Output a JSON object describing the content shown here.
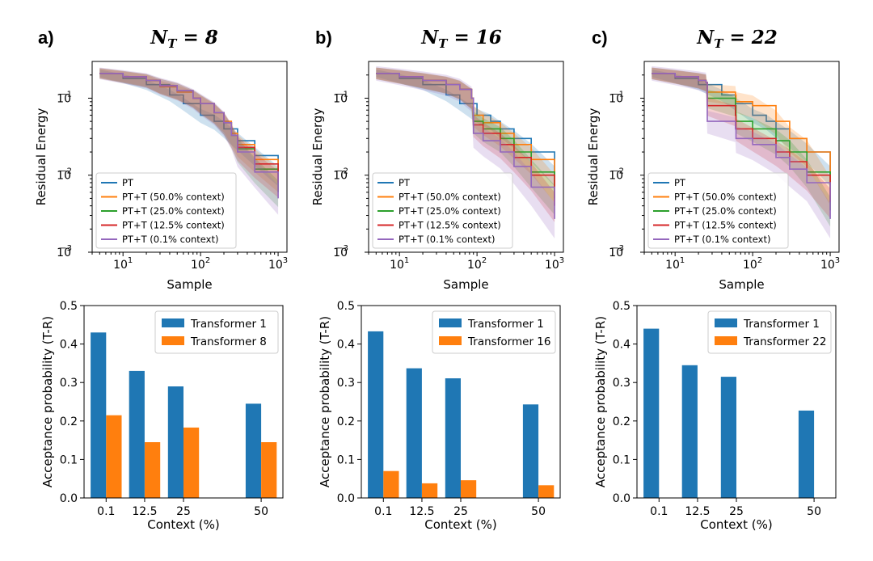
{
  "figure": {
    "x_label_top": "Sample",
    "y_label_top": "Residual Energy",
    "x_label_bottom": "Context (%)",
    "y_label_bottom": "Acceptance probability (T-R)",
    "log_x_ticks": [
      "10",
      "1",
      "10",
      "2",
      "10",
      "3"
    ],
    "log_y_ticks": [
      "10",
      "−1",
      "10",
      "−2",
      "10",
      "−3"
    ]
  },
  "chart_data": [
    {
      "type": "line",
      "panel_letter": "a)",
      "title_main": "N",
      "title_sub": "T",
      "title_rest": " = 8",
      "xscale": "log",
      "yscale": "log",
      "xlim": [
        4,
        1300
      ],
      "ylim": [
        0.001,
        0.3
      ],
      "xlabel": "Sample",
      "ylabel": "Residual Energy",
      "legend_loc": "lower-left",
      "series": [
        {
          "name": "PT",
          "color": "#1f77b4",
          "band": 0.2,
          "points": [
            [
              5,
              0.21
            ],
            [
              10,
              0.18
            ],
            [
              20,
              0.15
            ],
            [
              40,
              0.11
            ],
            [
              60,
              0.085
            ],
            [
              100,
              0.06
            ],
            [
              150,
              0.05
            ],
            [
              200,
              0.04
            ],
            [
              300,
              0.028
            ],
            [
              500,
              0.018
            ],
            [
              1000,
              0.01
            ]
          ]
        },
        {
          "name": "PT+T (50.0% context)",
          "color": "#ff7f0e",
          "band": 0.25,
          "points": [
            [
              5,
              0.21
            ],
            [
              10,
              0.19
            ],
            [
              20,
              0.17
            ],
            [
              30,
              0.14
            ],
            [
              50,
              0.12
            ],
            [
              80,
              0.1
            ],
            [
              100,
              0.085
            ],
            [
              150,
              0.065
            ],
            [
              200,
              0.05
            ],
            [
              250,
              0.035
            ],
            [
              300,
              0.025
            ],
            [
              500,
              0.016
            ],
            [
              1000,
              0.009
            ]
          ]
        },
        {
          "name": "PT+T (25.0% context)",
          "color": "#2ca02c",
          "band": 0.28,
          "points": [
            [
              5,
              0.21
            ],
            [
              10,
              0.19
            ],
            [
              20,
              0.17
            ],
            [
              30,
              0.145
            ],
            [
              50,
              0.125
            ],
            [
              80,
              0.1
            ],
            [
              100,
              0.085
            ],
            [
              150,
              0.065
            ],
            [
              200,
              0.048
            ],
            [
              250,
              0.033
            ],
            [
              300,
              0.022
            ],
            [
              500,
              0.012
            ],
            [
              1000,
              0.006
            ]
          ]
        },
        {
          "name": "PT+T (12.5% context)",
          "color": "#d62728",
          "band": 0.28,
          "points": [
            [
              5,
              0.21
            ],
            [
              10,
              0.19
            ],
            [
              20,
              0.17
            ],
            [
              30,
              0.145
            ],
            [
              50,
              0.125
            ],
            [
              80,
              0.1
            ],
            [
              100,
              0.085
            ],
            [
              150,
              0.065
            ],
            [
              200,
              0.048
            ],
            [
              250,
              0.033
            ],
            [
              300,
              0.023
            ],
            [
              500,
              0.014
            ],
            [
              1000,
              0.008
            ]
          ]
        },
        {
          "name": "PT+T (0.1% context)",
          "color": "#9467bd",
          "band": 0.32,
          "points": [
            [
              5,
              0.21
            ],
            [
              10,
              0.19
            ],
            [
              20,
              0.17
            ],
            [
              30,
              0.145
            ],
            [
              50,
              0.125
            ],
            [
              80,
              0.1
            ],
            [
              100,
              0.085
            ],
            [
              150,
              0.065
            ],
            [
              200,
              0.048
            ],
            [
              250,
              0.033
            ],
            [
              300,
              0.02
            ],
            [
              500,
              0.011
            ],
            [
              1000,
              0.005
            ]
          ]
        }
      ]
    },
    {
      "type": "line",
      "panel_letter": "b)",
      "title_main": "N",
      "title_sub": "T",
      "title_rest": " = 16",
      "xscale": "log",
      "yscale": "log",
      "xlim": [
        4,
        1300
      ],
      "ylim": [
        0.001,
        0.3
      ],
      "xlabel": "Sample",
      "ylabel": "Residual Energy",
      "legend_loc": "lower-left",
      "series": [
        {
          "name": "PT",
          "color": "#1f77b4",
          "band": 0.2,
          "points": [
            [
              5,
              0.21
            ],
            [
              10,
              0.18
            ],
            [
              20,
              0.15
            ],
            [
              40,
              0.11
            ],
            [
              60,
              0.085
            ],
            [
              100,
              0.06
            ],
            [
              150,
              0.05
            ],
            [
              200,
              0.04
            ],
            [
              300,
              0.03
            ],
            [
              500,
              0.02
            ],
            [
              1000,
              0.01
            ]
          ]
        },
        {
          "name": "PT+T (50.0% context)",
          "color": "#ff7f0e",
          "band": 0.3,
          "points": [
            [
              5,
              0.21
            ],
            [
              10,
              0.19
            ],
            [
              20,
              0.17
            ],
            [
              40,
              0.15
            ],
            [
              60,
              0.13
            ],
            [
              85,
              0.1
            ],
            [
              90,
              0.06
            ],
            [
              120,
              0.048
            ],
            [
              200,
              0.035
            ],
            [
              300,
              0.025
            ],
            [
              500,
              0.016
            ],
            [
              1000,
              0.007
            ]
          ]
        },
        {
          "name": "PT+T (25.0% context)",
          "color": "#2ca02c",
          "band": 0.32,
          "points": [
            [
              5,
              0.21
            ],
            [
              10,
              0.19
            ],
            [
              20,
              0.17
            ],
            [
              40,
              0.15
            ],
            [
              60,
              0.13
            ],
            [
              85,
              0.1
            ],
            [
              90,
              0.05
            ],
            [
              120,
              0.04
            ],
            [
              200,
              0.03
            ],
            [
              300,
              0.02
            ],
            [
              500,
              0.011
            ],
            [
              1000,
              0.005
            ]
          ]
        },
        {
          "name": "PT+T (12.5% context)",
          "color": "#d62728",
          "band": 0.32,
          "points": [
            [
              5,
              0.21
            ],
            [
              10,
              0.19
            ],
            [
              20,
              0.17
            ],
            [
              40,
              0.15
            ],
            [
              60,
              0.13
            ],
            [
              85,
              0.1
            ],
            [
              90,
              0.045
            ],
            [
              120,
              0.035
            ],
            [
              200,
              0.025
            ],
            [
              300,
              0.017
            ],
            [
              500,
              0.01
            ],
            [
              1000,
              0.004
            ]
          ]
        },
        {
          "name": "PT+T (0.1% context)",
          "color": "#9467bd",
          "band": 0.4,
          "points": [
            [
              5,
              0.21
            ],
            [
              10,
              0.19
            ],
            [
              20,
              0.17
            ],
            [
              40,
              0.15
            ],
            [
              60,
              0.13
            ],
            [
              85,
              0.1
            ],
            [
              90,
              0.035
            ],
            [
              120,
              0.028
            ],
            [
              200,
              0.02
            ],
            [
              300,
              0.013
            ],
            [
              500,
              0.007
            ],
            [
              1000,
              0.0027
            ]
          ]
        }
      ]
    },
    {
      "type": "line",
      "panel_letter": "c)",
      "title_main": "N",
      "title_sub": "T",
      "title_rest": " = 22",
      "xscale": "log",
      "yscale": "log",
      "xlim": [
        4,
        1300
      ],
      "ylim": [
        0.001,
        0.3
      ],
      "xlabel": "Sample",
      "ylabel": "Residual Energy",
      "legend_loc": "lower-left",
      "series": [
        {
          "name": "PT",
          "color": "#1f77b4",
          "band": 0.2,
          "points": [
            [
              5,
              0.21
            ],
            [
              10,
              0.18
            ],
            [
              20,
              0.15
            ],
            [
              40,
              0.11
            ],
            [
              60,
              0.085
            ],
            [
              100,
              0.06
            ],
            [
              150,
              0.05
            ],
            [
              200,
              0.04
            ],
            [
              300,
              0.03
            ],
            [
              500,
              0.02
            ],
            [
              1000,
              0.01
            ]
          ]
        },
        {
          "name": "PT+T (50.0% context)",
          "color": "#ff7f0e",
          "band": 0.3,
          "points": [
            [
              5,
              0.21
            ],
            [
              10,
              0.19
            ],
            [
              20,
              0.17
            ],
            [
              25,
              0.16
            ],
            [
              26,
              0.12
            ],
            [
              60,
              0.11
            ],
            [
              61,
              0.09
            ],
            [
              100,
              0.08
            ],
            [
              200,
              0.05
            ],
            [
              300,
              0.03
            ],
            [
              500,
              0.02
            ],
            [
              1000,
              0.0065
            ]
          ]
        },
        {
          "name": "PT+T (25.0% context)",
          "color": "#2ca02c",
          "band": 0.32,
          "points": [
            [
              5,
              0.21
            ],
            [
              10,
              0.19
            ],
            [
              20,
              0.17
            ],
            [
              25,
              0.16
            ],
            [
              26,
              0.1
            ],
            [
              60,
              0.08
            ],
            [
              61,
              0.05
            ],
            [
              100,
              0.04
            ],
            [
              200,
              0.028
            ],
            [
              300,
              0.02
            ],
            [
              500,
              0.011
            ],
            [
              1000,
              0.0035
            ]
          ]
        },
        {
          "name": "PT+T (12.5% context)",
          "color": "#d62728",
          "band": 0.32,
          "points": [
            [
              5,
              0.21
            ],
            [
              10,
              0.19
            ],
            [
              20,
              0.17
            ],
            [
              25,
              0.16
            ],
            [
              26,
              0.08
            ],
            [
              60,
              0.06
            ],
            [
              61,
              0.04
            ],
            [
              100,
              0.03
            ],
            [
              200,
              0.02
            ],
            [
              300,
              0.015
            ],
            [
              500,
              0.01
            ],
            [
              1000,
              0.0045
            ]
          ]
        },
        {
          "name": "PT+T (0.1% context)",
          "color": "#9467bd",
          "band": 0.4,
          "points": [
            [
              5,
              0.21
            ],
            [
              10,
              0.19
            ],
            [
              20,
              0.17
            ],
            [
              25,
              0.16
            ],
            [
              26,
              0.05
            ],
            [
              60,
              0.04
            ],
            [
              61,
              0.03
            ],
            [
              100,
              0.025
            ],
            [
              200,
              0.017
            ],
            [
              300,
              0.012
            ],
            [
              500,
              0.008
            ],
            [
              1000,
              0.0027
            ]
          ]
        }
      ]
    },
    {
      "type": "bar",
      "categories": [
        "0.1",
        "12.5",
        "25",
        "50"
      ],
      "positions": [
        0.1,
        12.5,
        25,
        50
      ],
      "xlabel": "Context (%)",
      "ylabel": "Acceptance probability (T-R)",
      "ylim": [
        0,
        0.5
      ],
      "yticks": [
        "0.0",
        "0.1",
        "0.2",
        "0.3",
        "0.4",
        "0.5"
      ],
      "legend_loc": "top-right",
      "series": [
        {
          "name": "Transformer 1",
          "color": "#1f77b4",
          "values": [
            0.43,
            0.33,
            0.29,
            0.245
          ]
        },
        {
          "name": "Transformer 8",
          "color": "#ff7f0e",
          "values": [
            0.215,
            0.145,
            0.183,
            0.145
          ]
        }
      ]
    },
    {
      "type": "bar",
      "categories": [
        "0.1",
        "12.5",
        "25",
        "50"
      ],
      "positions": [
        0.1,
        12.5,
        25,
        50
      ],
      "xlabel": "Context (%)",
      "ylabel": "Acceptance probability (T-R)",
      "ylim": [
        0,
        0.5
      ],
      "yticks": [
        "0.0",
        "0.1",
        "0.2",
        "0.3",
        "0.4",
        "0.5"
      ],
      "legend_loc": "top-right",
      "series": [
        {
          "name": "Transformer 1",
          "color": "#1f77b4",
          "values": [
            0.433,
            0.337,
            0.311,
            0.243
          ]
        },
        {
          "name": "Transformer 16",
          "color": "#ff7f0e",
          "values": [
            0.07,
            0.038,
            0.046,
            0.033
          ]
        }
      ]
    },
    {
      "type": "bar",
      "categories": [
        "0.1",
        "12.5",
        "25",
        "50"
      ],
      "positions": [
        0.1,
        12.5,
        25,
        50
      ],
      "xlabel": "Context (%)",
      "ylabel": "Acceptance probability (T-R)",
      "ylim": [
        0,
        0.5
      ],
      "yticks": [
        "0.0",
        "0.1",
        "0.2",
        "0.3",
        "0.4",
        "0.5"
      ],
      "legend_loc": "top-right",
      "series": [
        {
          "name": "Transformer 1",
          "color": "#1f77b4",
          "values": [
            0.44,
            0.345,
            0.315,
            0.227
          ]
        },
        {
          "name": "Transformer 22",
          "color": "#ff7f0e",
          "values": [
            0,
            0,
            0,
            0
          ]
        }
      ]
    }
  ]
}
